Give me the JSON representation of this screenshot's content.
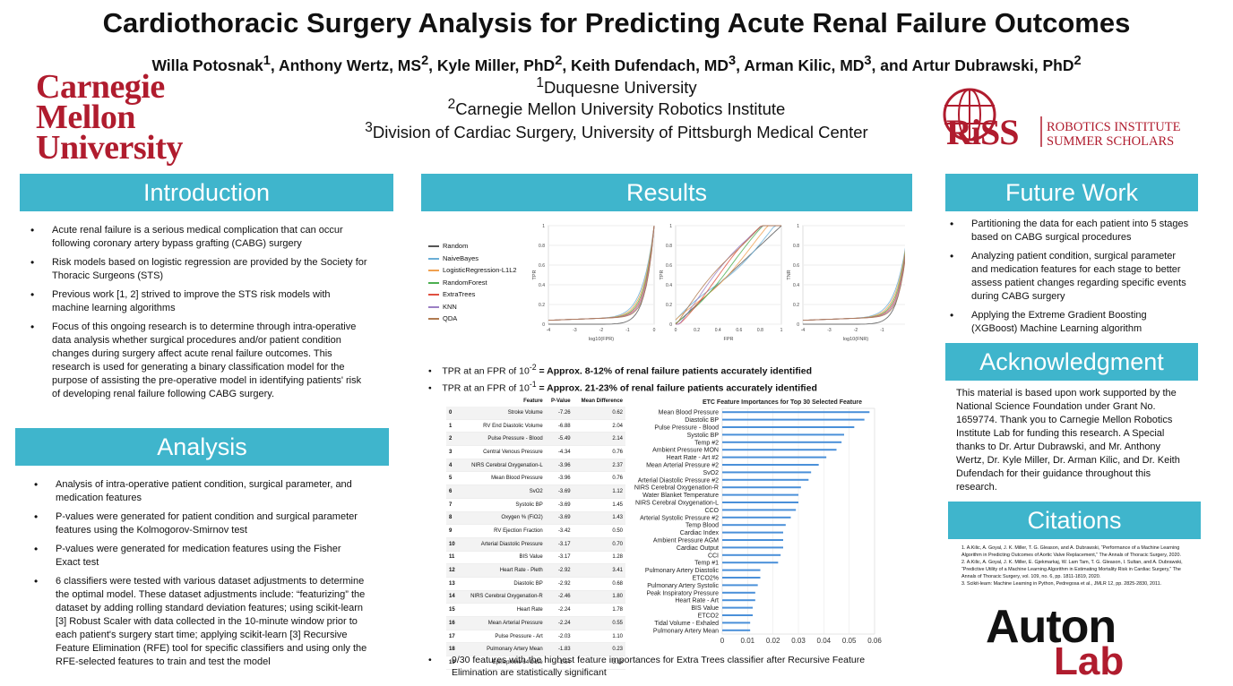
{
  "title": "Cardiothoracic Surgery Analysis for Predicting Acute Renal Failure Outcomes",
  "authors": [
    {
      "name": "Willa Potosnak",
      "sup": "1"
    },
    {
      "name": "Anthony Wertz, MS",
      "sup": "2"
    },
    {
      "name": "Kyle Miller, PhD",
      "sup": "2"
    },
    {
      "name": "Keith Dufendach, MD",
      "sup": "3"
    },
    {
      "name": "Arman Kilic, MD",
      "sup": "3"
    },
    {
      "name": "and Artur Dubrawski, PhD",
      "sup": "2"
    }
  ],
  "affiliations": [
    {
      "sup": "1",
      "text": "Duquesne University"
    },
    {
      "sup": "2",
      "text": "Carnegie Mellon University Robotics Institute"
    },
    {
      "sup": "3",
      "text": "Division of Cardiac Surgery, University of Pittsburgh Medical Center"
    }
  ],
  "logos": {
    "cmu": [
      "Carnegie",
      "Mellon",
      "University"
    ],
    "riss": {
      "mark": "RiSS",
      "line1": "ROBOTICS INSTITUTE",
      "line2": "SUMMER SCHOLARS"
    },
    "auton": {
      "line1": "Auton",
      "line2": "Lab"
    }
  },
  "colors": {
    "header_bg": "#3fb5cc",
    "cmu_red": "#b01c2e",
    "bar_blue": "#4a90d9"
  },
  "introduction": {
    "heading": "Introduction",
    "bullets": [
      "Acute renal failure is a serious medical complication that can occur following coronary artery bypass grafting (CABG) surgery",
      "Risk models based on logistic regression are provided by the Society for Thoracic Surgeons (STS)",
      "Previous work [1, 2] strived to improve the STS risk models with machine learning algorithms",
      "Focus of this ongoing research is to determine through intra-operative data analysis whether surgical procedures and/or patient condition changes during surgery affect acute renal failure outcomes. This research is used for generating a binary classification model for the purpose of assisting the pre-operative model in identifying patients' risk of developing renal failure following CABG surgery."
    ]
  },
  "analysis": {
    "heading": "Analysis",
    "bullets": [
      "Analysis of intra-operative patient condition, surgical parameter, and medication features",
      "P-values were generated for patient condition and surgical parameter features using the Kolmogorov-Smirnov test",
      "P-values were generated for medication features using the Fisher Exact test",
      "6 classifiers were tested with various dataset adjustments to determine the optimal model. These dataset adjustments include: “featurizing” the dataset by adding rolling standard deviation features; using scikit-learn [3] Robust Scaler with data collected in the 10-minute window prior to each patient's surgery start time; applying scikit-learn [3] Recursive Feature Elimination (RFE) tool for specific classifiers and using only the RFE-selected features to train and test the model"
    ]
  },
  "results": {
    "heading": "Results",
    "legend": [
      "Random",
      "NaiveBayes",
      "LogisticRegression-L1L2",
      "RandomForest",
      "ExtraTrees",
      "KNN",
      "QDA"
    ],
    "legend_colors": [
      "#555555",
      "#6aaed6",
      "#f0a050",
      "#4caf50",
      "#e05040",
      "#9b7fc4",
      "#b07a50"
    ],
    "roc_plots": [
      {
        "ylabel": "TPR",
        "xlabel": "log10(FPR)",
        "xticks": [
          "-4",
          "-3",
          "-2",
          "-1",
          "0"
        ],
        "yticks": [
          "0",
          "0.2",
          "0.4",
          "0.6",
          "0.8",
          "1"
        ]
      },
      {
        "ylabel": "TPR",
        "xlabel": "FPR",
        "xticks": [
          "0",
          "0.2",
          "0.4",
          "0.6",
          "0.8",
          "1"
        ],
        "yticks": [
          "0",
          "0.2",
          "0.4",
          "0.6",
          "0.8",
          "1"
        ]
      },
      {
        "ylabel": "TNR",
        "xlabel": "log10(FNR)",
        "xticks": [
          "-4",
          "-3",
          "-2",
          "-1",
          "0"
        ],
        "yticks": [
          "0",
          "0.2",
          "0.4",
          "0.6",
          "0.8",
          "1"
        ]
      }
    ],
    "finding1": {
      "pre": "TPR at an FPR of 10",
      "sup": "-2",
      "bold": " = Approx. 8-12% of renal failure patients accurately identified"
    },
    "finding2": {
      "pre": "TPR at an FPR of 10",
      "sup": "-1",
      "bold": " = Approx. 21-23% of renal failure patients accurately identified"
    },
    "table": {
      "headers": [
        "",
        "Feature",
        "P-Value",
        "Mean Difference"
      ],
      "rows": [
        [
          "0",
          "Stroke Volume",
          "-7.26",
          "0.62"
        ],
        [
          "1",
          "RV End Diastolic Volume",
          "-6.88",
          "2.04"
        ],
        [
          "2",
          "Pulse Pressure - Blood",
          "-5.49",
          "2.14"
        ],
        [
          "3",
          "Central Venous Pressure",
          "-4.34",
          "0.76"
        ],
        [
          "4",
          "NIRS Cerebral Oxygenation-L",
          "-3.96",
          "2.37"
        ],
        [
          "5",
          "Mean Blood Pressure",
          "-3.96",
          "0.76"
        ],
        [
          "6",
          "SvO2",
          "-3.69",
          "1.12"
        ],
        [
          "7",
          "Systolic BP",
          "-3.69",
          "1.45"
        ],
        [
          "8",
          "Oxygen % (FiO2)",
          "-3.69",
          "1.43"
        ],
        [
          "9",
          "RV Ejection Fraction",
          "-3.42",
          "0.50"
        ],
        [
          "10",
          "Arterial Diastolic Pressure",
          "-3.17",
          "0.70"
        ],
        [
          "11",
          "BIS Value",
          "-3.17",
          "1.28"
        ],
        [
          "12",
          "Heart Rate - Pleth",
          "-2.92",
          "3.41"
        ],
        [
          "13",
          "Diastolic BP",
          "-2.92",
          "0.68"
        ],
        [
          "14",
          "NIRS Cerebral Oxygenation-R",
          "-2.46",
          "1.80"
        ],
        [
          "15",
          "Heart Rate",
          "-2.24",
          "1.78"
        ],
        [
          "16",
          "Mean Arterial Pressure",
          "-2.24",
          "0.55"
        ],
        [
          "17",
          "Pulse Pressure - Art",
          "-2.03",
          "1.10"
        ],
        [
          "18",
          "Pulmonary Artery Mean",
          "-1.83",
          "0.23"
        ],
        [
          "19",
          "Epinephrine 64 Dose",
          "-1.64",
          "3.13"
        ]
      ]
    },
    "finding3": "9/30 features with the highest feature importances for Extra Trees classifier after Recursive Feature Elimination are statistically significant"
  },
  "chart_data": {
    "type": "bar",
    "orientation": "horizontal",
    "title": "ETC Feature Importances for Top 30 Selected Feature",
    "xlabel": "",
    "ylabel": "",
    "xlim": [
      0,
      0.06
    ],
    "xticks": [
      "0",
      "0.01",
      "0.02",
      "0.03",
      "0.04",
      "0.05",
      "0.06"
    ],
    "grid": true,
    "categories": [
      "Mean Blood Pressure",
      "Diastolic BP",
      "Pulse Pressure - Blood",
      "Systolic BP",
      "Temp #2",
      "Ambient Pressure MON",
      "Heart Rate - Art #2",
      "Mean Arterial Pressure #2",
      "SvO2",
      "Arterial Diastolic Pressure #2",
      "NIRS Cerebral Oxygenation-R",
      "Water Blanket Temperature",
      "NIRS Cerebral Oxygenation-L",
      "CCO",
      "Arterial Systolic Pressure #2",
      "Temp Blood",
      "Cardiac Index",
      "Ambient Pressure AGM",
      "Cardiac Output",
      "CCI",
      "Temp #1",
      "Pulmonary Artery Diastolic",
      "ETCO2%",
      "Pulmonary Artery Systolic",
      "Peak Inspiratory Pressure",
      "Heart Rate - Art",
      "BIS Value",
      "ETCO2",
      "Tidal Volume - Exhaled",
      "Pulmonary Artery Mean"
    ],
    "values": [
      0.058,
      0.056,
      0.052,
      0.048,
      0.047,
      0.045,
      0.041,
      0.038,
      0.035,
      0.034,
      0.031,
      0.03,
      0.03,
      0.029,
      0.027,
      0.025,
      0.024,
      0.024,
      0.024,
      0.023,
      0.022,
      0.015,
      0.015,
      0.014,
      0.013,
      0.013,
      0.012,
      0.012,
      0.011,
      0.011
    ]
  },
  "future_work": {
    "heading": "Future Work",
    "bullets": [
      "Partitioning the data for each patient into 5 stages based on CABG surgical procedures",
      "Analyzing patient condition, surgical parameter and medication features for each stage to better assess patient changes regarding specific events during CABG surgery",
      "Applying the Extreme Gradient Boosting (XGBoost) Machine Learning algorithm"
    ]
  },
  "acknowledgment": {
    "heading": "Acknowledgment",
    "text": "This material is based upon work supported by the National Science Foundation under Grant No. 1659774. Thank you to Carnegie Mellon Robotics Institute Lab for funding this research. A Special thanks to Dr. Artur Dubrawski, and Mr. Anthony Wertz, Dr. Kyle Miller, Dr. Arman Kilic, and Dr. Keith Dufendach for their guidance throughout this research."
  },
  "citations": {
    "heading": "Citations",
    "items": [
      "1. A.Kilic, A. Goyal, J. K. Miller, T. G. Gleason, and A. Dubrawski, “Performance of a Machine Learning Algorithm in Predicting Outcomes of Aortic Valve Replacement,” The Annals of Thoracic Surgery, 2020.",
      "2. A.Kilic, A. Goyal, J. K. Miller, E. Gjekmarkaj, W. Lam Tam, T. G. Gleason, I. Sultan, and A. Dubrawski, “Predictive Utility of a Machine Learning Algorithm in Estimating Mortality Risk in Cardiac Surgery,” The Annals of Thoracic Surgery, vol. 109, no. 6, pp. 1811-1819, 2020.",
      "3. Scikit-learn: Machine Learning in Python, Pedregosa et al., JMLR 12, pp. 2825-2830, 2011."
    ]
  }
}
